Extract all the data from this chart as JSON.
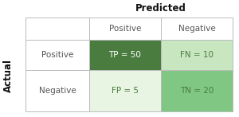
{
  "title_top": "Predicted",
  "title_left": "Actual",
  "col_headers": [
    "",
    "Positive",
    "Negative"
  ],
  "row_headers": [
    "",
    "Positive",
    "Negative"
  ],
  "cell_values": [
    [
      "TP = 50",
      "FN = 10"
    ],
    [
      "FP = 5",
      "TN = 20"
    ]
  ],
  "cell_colors": [
    [
      "#4a7c3f",
      "#c8e6c0"
    ],
    [
      "#e8f5e2",
      "#81c784"
    ]
  ],
  "header_bg": "#ffffff",
  "border_color": "#bbbbbb",
  "text_color_dark": "#ffffff",
  "text_color_light": "#4a7c3f",
  "header_text_color": "#555555",
  "title_color": "#111111",
  "bg_color": "#ffffff",
  "figsize": [
    3.0,
    1.47
  ],
  "dpi": 100
}
